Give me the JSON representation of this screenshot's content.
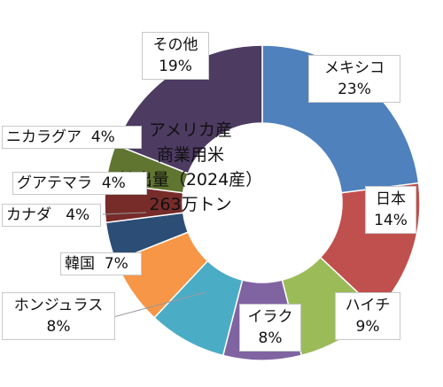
{
  "chart_data": {
    "type": "pie",
    "title": "アメリカ産\n商業用米\n輸出量（2024産）\n263万トン",
    "center_lines": [
      "アメリカ産",
      "商業用米",
      "輸出量（2024産）",
      "263万トン"
    ],
    "slices": [
      {
        "name": "メキシコ",
        "pct_label": "23%",
        "value": 23,
        "color": "#4f81bd"
      },
      {
        "name": "日本",
        "pct_label": "14%",
        "value": 14,
        "color": "#c0504d"
      },
      {
        "name": "ハイチ",
        "pct_label": "9%",
        "value": 9,
        "color": "#9bbb59"
      },
      {
        "name": "イラク",
        "pct_label": "8%",
        "value": 8,
        "color": "#8064a2"
      },
      {
        "name": "ホンジュラス",
        "pct_label": "8%",
        "value": 8,
        "color": "#4bacc6"
      },
      {
        "name": "韓国",
        "pct_label": "7%",
        "value": 7,
        "color": "#f79646"
      },
      {
        "name": "カナダ",
        "pct_label": "4%",
        "value": 4,
        "color": "#2c4d75"
      },
      {
        "name": "グアテマラ",
        "pct_label": "4%",
        "value": 4,
        "color": "#772c2a"
      },
      {
        "name": "ニカラグア",
        "pct_label": "4%",
        "value": 4,
        "color": "#5f7530"
      },
      {
        "name": "その他",
        "pct_label": "19%",
        "value": 19,
        "color": "#4d3b62"
      }
    ]
  }
}
